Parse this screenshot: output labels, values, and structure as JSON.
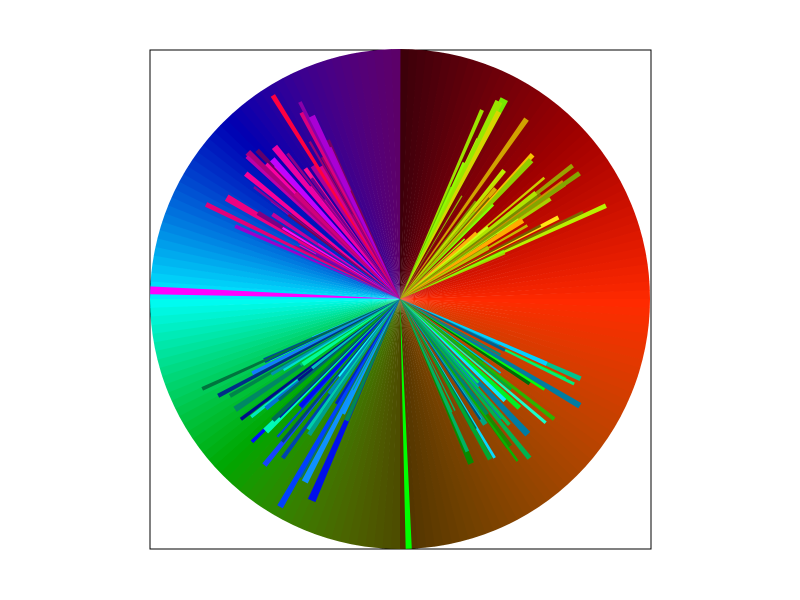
{
  "image": {
    "subject": "radial-color-wheel",
    "frame_color": "#000000",
    "background_color": "#ffffff",
    "palette": [
      "#ff0000",
      "#ff00ff",
      "#0000ff",
      "#00ffff",
      "#00ff00",
      "#ffff00",
      "#ff8000",
      "#800000",
      "#8000ff"
    ],
    "quadrant_base_hues": {
      "top": [
        "#400000",
        "#ff0000"
      ],
      "right": [
        "#200000",
        "#ff0020"
      ],
      "bottom": [
        "#400000",
        "#ff2000"
      ],
      "left": [
        "#003040",
        "#00ffff"
      ]
    }
  }
}
